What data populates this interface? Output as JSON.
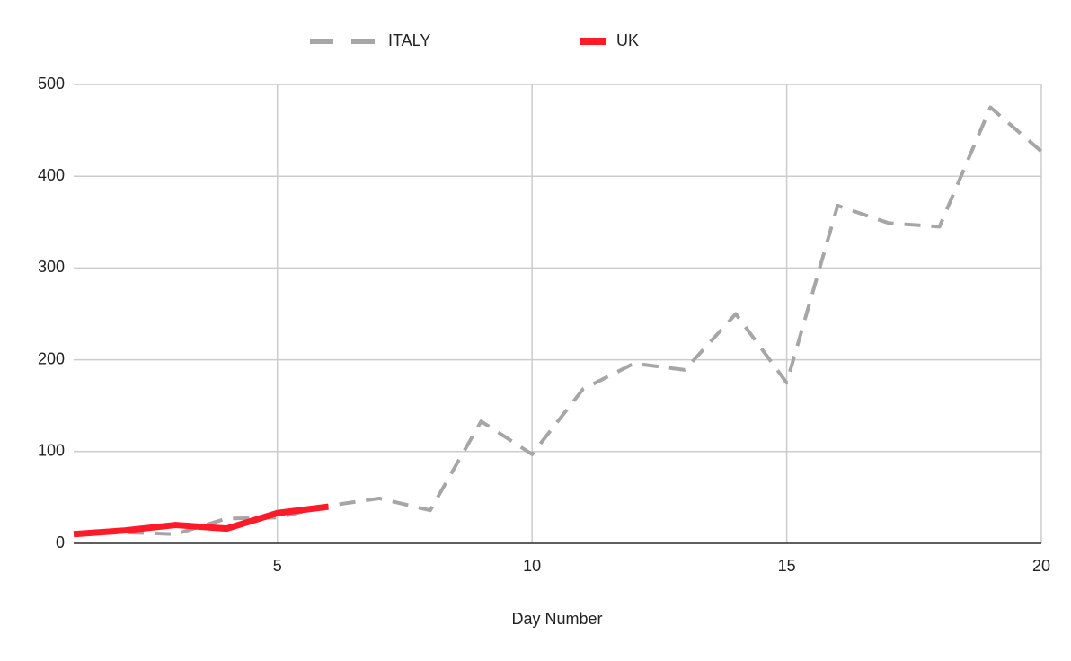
{
  "chart_data": {
    "type": "line",
    "x_label": "Day Number",
    "x": [
      1,
      2,
      3,
      4,
      5,
      6,
      7,
      8,
      9,
      10,
      11,
      12,
      13,
      14,
      15,
      16,
      17,
      18,
      19,
      20
    ],
    "series": [
      {
        "name": "ITALY",
        "color": "#a6a6a6",
        "dashed": true,
        "values": [
          10,
          12,
          10,
          27,
          28,
          41,
          49,
          36,
          133,
          97,
          168,
          196,
          189,
          250,
          175,
          368,
          349,
          345,
          475,
          427
        ]
      },
      {
        "name": "UK",
        "color": "#ff1a2a",
        "dashed": false,
        "values": [
          10,
          14,
          20,
          16,
          33,
          40,
          null,
          null,
          null,
          null,
          null,
          null,
          null,
          null,
          null,
          null,
          null,
          null,
          null,
          null
        ]
      }
    ],
    "xlim": [
      1,
      20
    ],
    "xticks": [
      5,
      10,
      15,
      20
    ],
    "ylim": [
      0,
      500
    ],
    "yticks": [
      0,
      100,
      200,
      300,
      400,
      500
    ],
    "grid": true,
    "legend_position": "top"
  }
}
